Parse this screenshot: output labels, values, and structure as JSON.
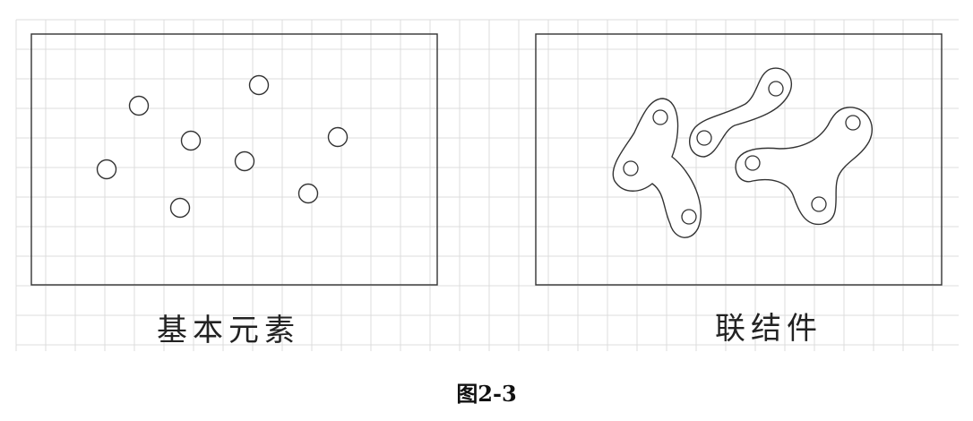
{
  "panels": {
    "left": {
      "label": "基本元素",
      "element_count": 8
    },
    "right": {
      "label": "联结件",
      "connected_shapes": 3
    }
  },
  "figure": {
    "caption": "图2-3"
  },
  "colors": {
    "grid": "#dcdcdc",
    "stroke": "#333333",
    "background": "#ffffff"
  }
}
